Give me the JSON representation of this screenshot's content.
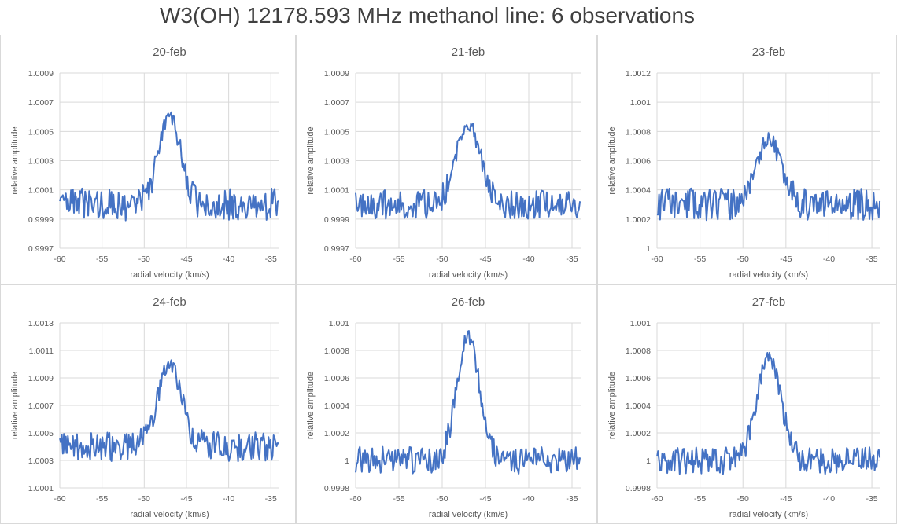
{
  "title": "W3(OH) 12178.593 MHz methanol line: 6 observations",
  "chart_data": [
    {
      "type": "line",
      "title": "20-feb",
      "xlabel": "radial velocity (km/s)",
      "ylabel": "relative amplitude",
      "xlim": [
        -60,
        -34
      ],
      "ylim": [
        0.9997,
        1.0009
      ],
      "x_ticks": [
        -60,
        -55,
        -50,
        -45,
        -40,
        -35
      ],
      "y_ticks": [
        "0.9997",
        "0.9999",
        "1.0001",
        "1.0003",
        "1.0005",
        "1.0007",
        "1.0009"
      ],
      "base": 1.0,
      "noise": 0.00011,
      "peak": 1.0006,
      "peak_center": -47,
      "peak_width": 1.3,
      "seed": 3
    },
    {
      "type": "line",
      "title": "21-feb",
      "xlabel": "radial velocity (km/s)",
      "ylabel": "relative amplitude",
      "xlim": [
        -60,
        -34
      ],
      "ylim": [
        0.9997,
        1.0009
      ],
      "x_ticks": [
        -60,
        -55,
        -50,
        -45,
        -40,
        -35
      ],
      "y_ticks": [
        "0.9997",
        "0.9999",
        "1.0001",
        "1.0003",
        "1.0005",
        "1.0007",
        "1.0009"
      ],
      "base": 1.0,
      "noise": 0.0001,
      "peak": 1.00055,
      "peak_center": -47,
      "peak_width": 1.4,
      "seed": 7
    },
    {
      "type": "line",
      "title": "23-feb",
      "xlabel": "radial velocity (km/s)",
      "ylabel": "relative amplitude",
      "xlim": [
        -60,
        -34
      ],
      "ylim": [
        1.0,
        1.0012
      ],
      "x_ticks": [
        -60,
        -55,
        -50,
        -45,
        -40,
        -35
      ],
      "y_ticks": [
        "1",
        "1.0002",
        "1.0004",
        "1.0006",
        "1.0008",
        "1.001",
        "1.0012"
      ],
      "base": 1.0003,
      "noise": 0.00011,
      "peak": 1.00075,
      "peak_center": -47,
      "peak_width": 1.4,
      "seed": 11
    },
    {
      "type": "line",
      "title": "24-feb",
      "xlabel": "radial velocity (km/s)",
      "ylabel": "relative amplitude",
      "xlim": [
        -60,
        -34
      ],
      "ylim": [
        1.0001,
        1.0013
      ],
      "x_ticks": [
        -60,
        -55,
        -50,
        -45,
        -40,
        -35
      ],
      "y_ticks": [
        "1.0001",
        "1.0003",
        "1.0005",
        "1.0007",
        "1.0009",
        "1.0011",
        "1.0013"
      ],
      "base": 1.0004,
      "noise": 0.00011,
      "peak": 1.001,
      "peak_center": -47,
      "peak_width": 1.4,
      "seed": 19
    },
    {
      "type": "line",
      "title": "26-feb",
      "xlabel": "radial velocity (km/s)",
      "ylabel": "relative amplitude",
      "xlim": [
        -60,
        -34
      ],
      "ylim": [
        0.9998,
        1.001
      ],
      "x_ticks": [
        -60,
        -55,
        -50,
        -45,
        -40,
        -35
      ],
      "y_ticks": [
        "0.9998",
        "1",
        "1.0002",
        "1.0004",
        "1.0006",
        "1.0008",
        "1.001"
      ],
      "base": 1.0,
      "noise": 0.0001,
      "peak": 1.0009,
      "peak_center": -47,
      "peak_width": 1.3,
      "seed": 23
    },
    {
      "type": "line",
      "title": "27-feb",
      "xlabel": "radial velocity (km/s)",
      "ylabel": "relative amplitude",
      "xlim": [
        -60,
        -34
      ],
      "ylim": [
        0.9998,
        1.001
      ],
      "x_ticks": [
        -60,
        -55,
        -50,
        -45,
        -40,
        -35
      ],
      "y_ticks": [
        "0.9998",
        "1",
        "1.0002",
        "1.0004",
        "1.0006",
        "1.0008",
        "1.001"
      ],
      "base": 1.0,
      "noise": 0.0001,
      "peak": 1.00075,
      "peak_center": -47,
      "peak_width": 1.4,
      "seed": 31
    }
  ]
}
